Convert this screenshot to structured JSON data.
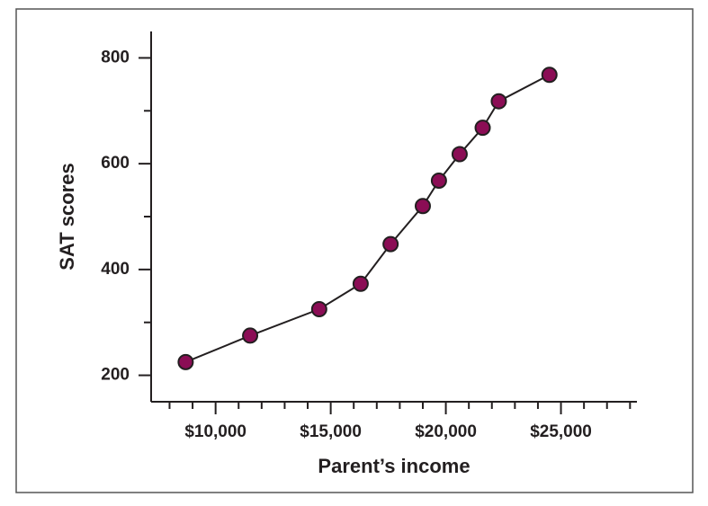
{
  "chart_data": {
    "type": "line",
    "x_label": "Parent’s income",
    "y_label": "SAT scores",
    "x": [
      8700,
      11500,
      14500,
      16300,
      17600,
      19000,
      19700,
      20600,
      21600,
      22300,
      24500
    ],
    "series": [
      {
        "color": "#8b0d55",
        "values": [
          225,
          275,
          325,
          373,
          448,
          520,
          568,
          618,
          668,
          718,
          768
        ]
      }
    ],
    "xlim": [
      7200,
      28300
    ],
    "xticks": [
      {
        "value": 10000,
        "label": "$10,000"
      },
      {
        "value": 15000,
        "label": "$15,000"
      },
      {
        "value": 20000,
        "label": "$20,000"
      },
      {
        "value": 25000,
        "label": "$25,000"
      }
    ],
    "x_minor_ticks": [
      8000,
      9000,
      11000,
      12000,
      13000,
      14000,
      16000,
      17000,
      18000,
      19000,
      21000,
      22000,
      23000,
      24000,
      26000,
      27000,
      28000
    ],
    "ylim": [
      150,
      850
    ],
    "yticks": [
      200,
      400,
      600,
      800
    ],
    "y_minor_ticks": [
      300,
      500,
      700
    ]
  }
}
